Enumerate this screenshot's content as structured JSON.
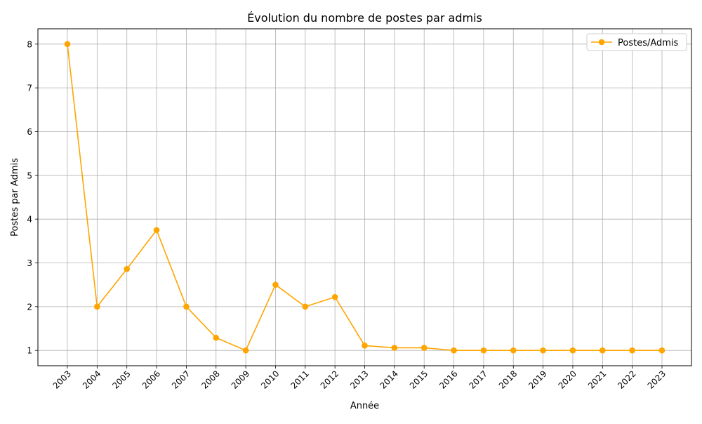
{
  "chart_data": {
    "type": "line",
    "title": "Évolution du nombre de postes par admis",
    "xlabel": "Année",
    "ylabel": "Postes par Admis",
    "categories": [
      "2003",
      "2004",
      "2005",
      "2006",
      "2007",
      "2008",
      "2009",
      "2010",
      "2011",
      "2012",
      "2013",
      "2014",
      "2015",
      "2016",
      "2017",
      "2018",
      "2019",
      "2020",
      "2021",
      "2022",
      "2023"
    ],
    "series": [
      {
        "name": "Postes/Admis",
        "values": [
          8.0,
          2.0,
          2.86,
          3.75,
          2.0,
          1.29,
          1.0,
          2.5,
          2.0,
          2.22,
          1.11,
          1.06,
          1.06,
          1.0,
          1.0,
          1.0,
          1.0,
          1.0,
          1.0,
          1.0,
          1.0
        ]
      }
    ],
    "yticks": [
      1,
      2,
      3,
      4,
      5,
      6,
      7,
      8
    ],
    "ylim": [
      0.65,
      8.35
    ],
    "grid": true,
    "legend_position": "top-right",
    "colors": {
      "series": "#ffa500",
      "grid": "#b0b0b0",
      "axis": "#000000"
    }
  }
}
